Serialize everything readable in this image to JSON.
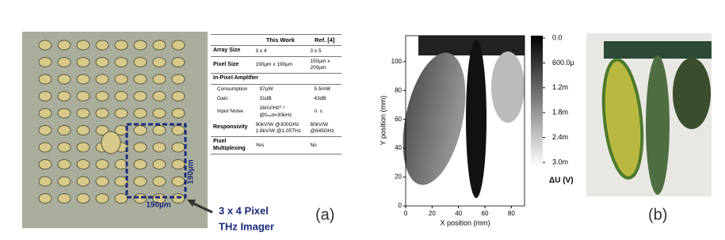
{
  "panel_a": {
    "scale_h": "190µm",
    "scale_v": "190µm",
    "caption_line1": "3 x 4 Pixel",
    "caption_line2": "THz Imager",
    "label": "(a)",
    "table": {
      "header": [
        "This Work",
        "Ref. [4]"
      ],
      "rows": [
        [
          "Array Size",
          "3 x 4",
          "3 x 5"
        ],
        [
          "Pixel Size",
          "190µm x 190µm",
          "150µm x 200µm"
        ],
        [
          "In-Pixel Amplifier"
        ],
        [
          "Consumption",
          "97µW",
          "5.5mW"
        ],
        [
          "Gain",
          "31dB",
          "43dB"
        ],
        [
          "Input Noise",
          "16nV/Hz⁰·⁵ @fₘₒd=30kHz",
          "n. c."
        ],
        [
          "Responsivity",
          "90kV/W @300GHz 1.8kV/W @1.05THz",
          "80kV/W @645GHz"
        ],
        [
          "Pixel Multiplexing",
          "Yes",
          "No"
        ]
      ]
    }
  },
  "panel_b": {
    "x_label": "X position (mm)",
    "y_label": "Y position (mm)",
    "xlim": [
      0,
      90
    ],
    "ylim": [
      0,
      118
    ],
    "xticks": [
      0,
      20,
      40,
      60,
      80
    ],
    "yticks": [
      0,
      20,
      40,
      60,
      80,
      100
    ],
    "colorbar": {
      "label": "ΔU (V)",
      "lim": [
        0,
        0.003
      ],
      "ticks": [
        {
          "value": 0,
          "label": "0.0"
        },
        {
          "value": 0.0006,
          "label": "600.0µ"
        },
        {
          "value": 0.0012,
          "label": "1.2m"
        },
        {
          "value": 0.0018,
          "label": "1.8m"
        },
        {
          "value": 0.0024,
          "label": "2.4m"
        },
        {
          "value": 0.003,
          "label": "3.0m"
        }
      ]
    },
    "label": "(b)"
  }
}
